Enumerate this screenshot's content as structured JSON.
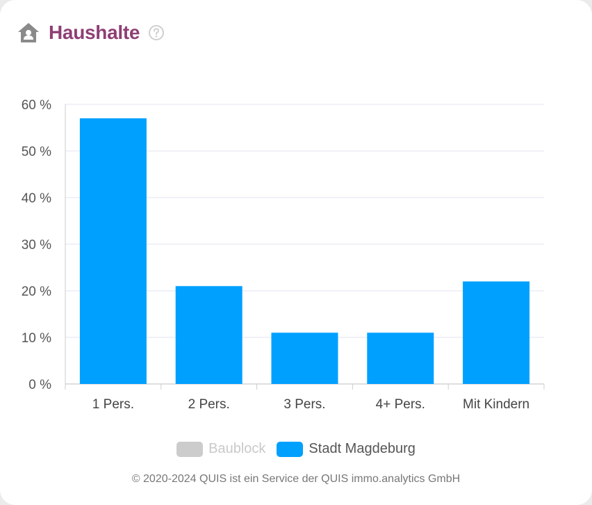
{
  "header": {
    "title": "Haushalte",
    "icon": "home-person-icon",
    "help_icon": "question-circle-icon"
  },
  "colors": {
    "title": "#8e3f74",
    "bar": "#00a0ff",
    "inactive": "#cccccc",
    "grid": "#e3e3f0",
    "icon": "#8a8a8a"
  },
  "legend": [
    {
      "label": "Baublock",
      "color": "#cccccc",
      "active": false
    },
    {
      "label": "Stadt Magdeburg",
      "color": "#00a0ff",
      "active": true
    }
  ],
  "footer": {
    "text": "© 2020-2024 QUIS ist ein Service der QUIS immo.analytics GmbH"
  },
  "chart_data": {
    "type": "bar",
    "categories": [
      "1 Pers.",
      "2 Pers.",
      "3 Pers.",
      "4+ Pers.",
      "Mit Kindern"
    ],
    "series": [
      {
        "name": "Stadt Magdeburg",
        "values": [
          57,
          21,
          11,
          11,
          22
        ],
        "color": "#00a0ff"
      }
    ],
    "ylim": [
      0,
      60
    ],
    "yticks": [
      0,
      10,
      20,
      30,
      40,
      50,
      60
    ],
    "ytick_labels": [
      "0 %",
      "10 %",
      "20 %",
      "30 %",
      "40 %",
      "50 %",
      "60 %"
    ],
    "grid": true,
    "legend_position": "bottom"
  }
}
